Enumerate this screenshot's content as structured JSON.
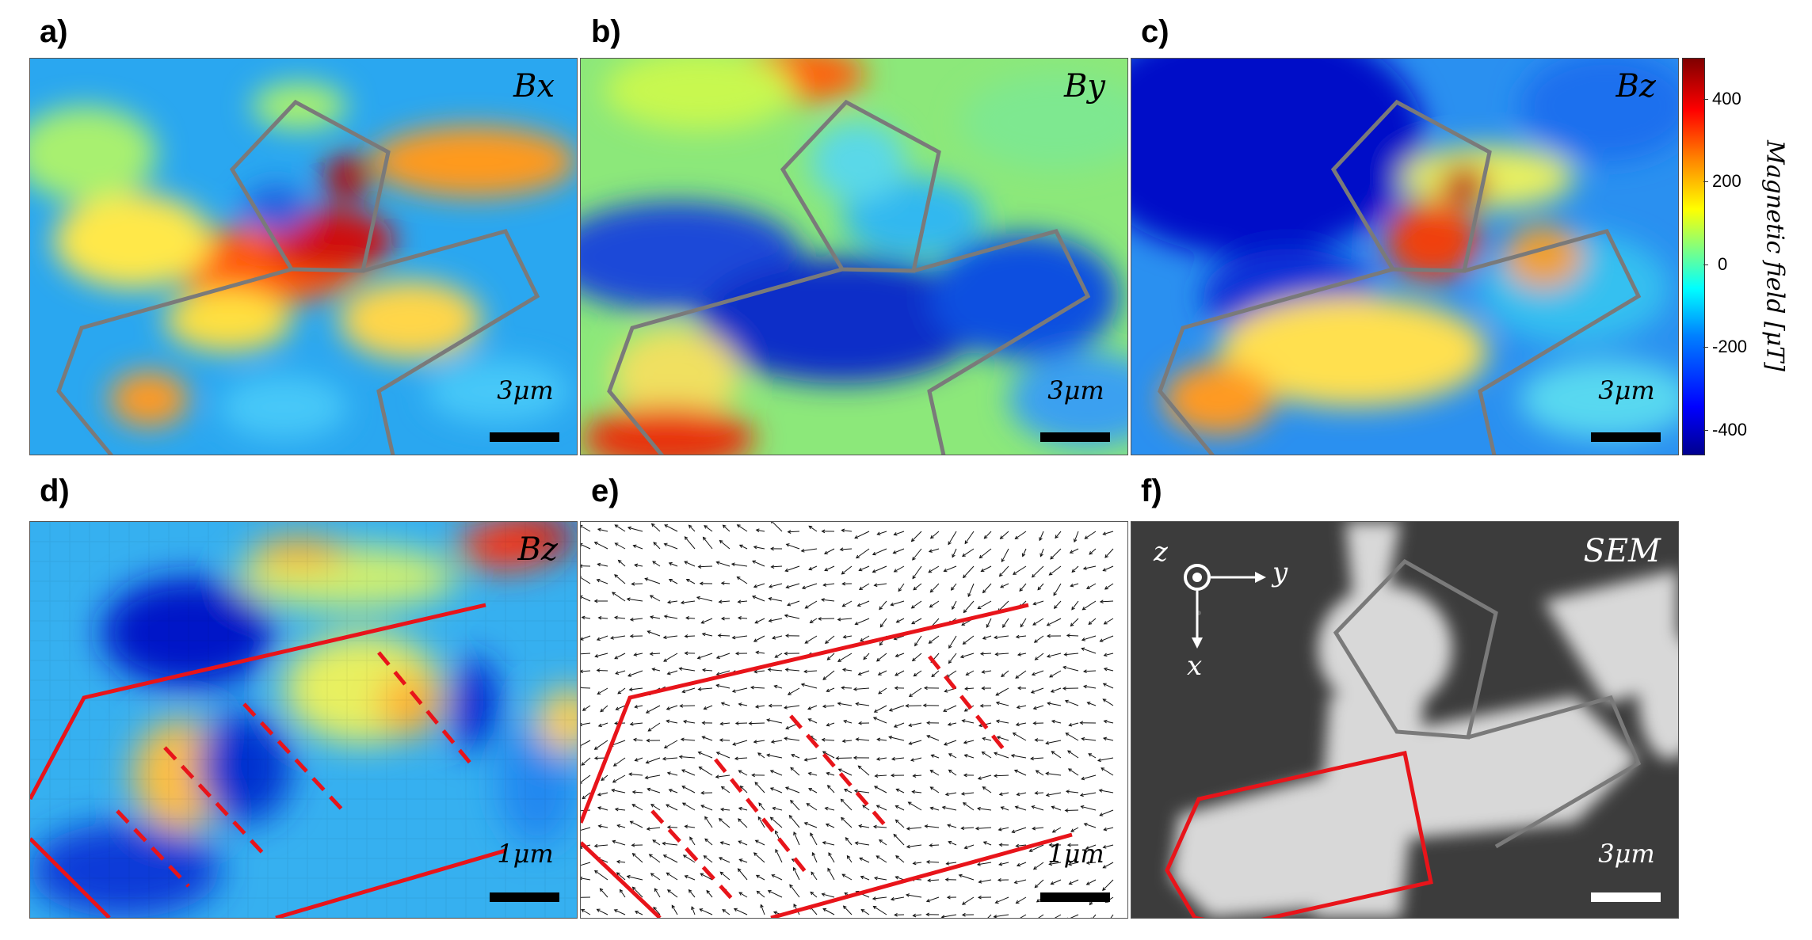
{
  "panels": {
    "a": {
      "letter": "a)",
      "field": "Bx",
      "scale": "3μm"
    },
    "b": {
      "letter": "b)",
      "field": "By",
      "scale": "3μm"
    },
    "c": {
      "letter": "c)",
      "field": "Bz",
      "scale": "3μm"
    },
    "d": {
      "letter": "d)",
      "field": "Bz",
      "scale": "1μm"
    },
    "e": {
      "letter": "e)",
      "scale": "1μm"
    },
    "f": {
      "letter": "f)",
      "field": "SEM",
      "scale": "3μm",
      "axes": {
        "z": "z",
        "y": "y",
        "x": "x"
      }
    }
  },
  "colorbar": {
    "label": "Magnetic field [μT]",
    "ticks": [
      "400",
      "200",
      "0",
      "-200",
      "-400"
    ],
    "range": [
      -450,
      450
    ],
    "colormap": "jet"
  },
  "colors": {
    "outline_gray": "#7a7a7a",
    "outline_red": "#e8141a"
  }
}
